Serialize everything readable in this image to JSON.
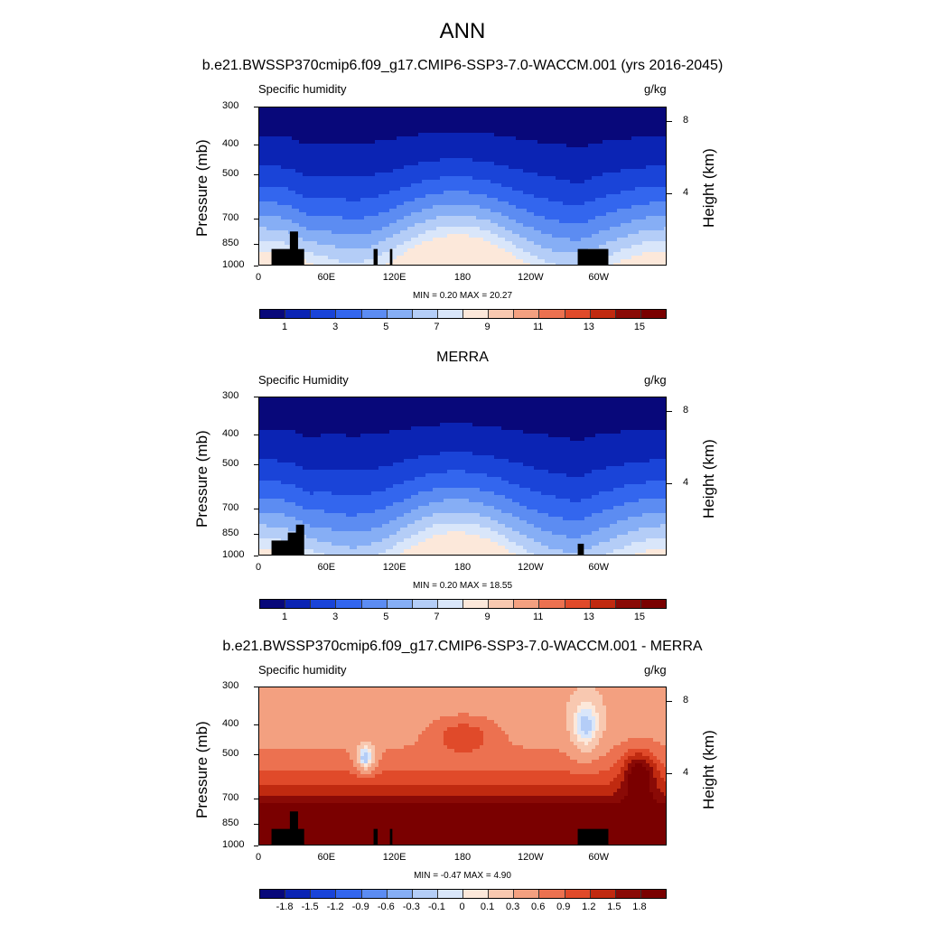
{
  "title": "ANN",
  "colors": {
    "levels15": [
      "#08087a",
      "#0b24b4",
      "#1a44d8",
      "#3366ee",
      "#5c8cf2",
      "#86aef5",
      "#b4cdf7",
      "#d9e6fa",
      "#fce8da",
      "#f8c8b0",
      "#f3a080",
      "#ec7150",
      "#e04a2a",
      "#c02a10",
      "#8a0a06",
      "#7a0000"
    ],
    "diff": [
      "#08087a",
      "#0b24b4",
      "#1a44d8",
      "#3366ee",
      "#5c8cf2",
      "#86aef5",
      "#b4cdf7",
      "#d9e6fa",
      "#fce8da",
      "#f8c8b0",
      "#f3a080",
      "#ec7150",
      "#e04a2a",
      "#c02a10",
      "#8a0a06",
      "#7a0000"
    ]
  },
  "panels": [
    {
      "header": "b.e21.BWSSP370cmip6.f09_g17.CMIP6-SSP3-7.0-WACCM.001 (yrs 2016-2045)",
      "left_label": "Specific humidity",
      "right_label": "g/kg",
      "y_title": "Pressure (mb)",
      "y2_title": "Height (km)",
      "minmax": "MIN =   0.20  MAX =  20.27",
      "cbar_labels": [
        "1",
        "3",
        "5",
        "7",
        "9",
        "11",
        "13",
        "15"
      ]
    },
    {
      "header": "MERRA",
      "left_label": "Specific Humidity",
      "right_label": "g/kg",
      "y_title": "Pressure (mb)",
      "y2_title": "Height (km)",
      "minmax": "MIN =   0.20  MAX =  18.55",
      "cbar_labels": [
        "1",
        "3",
        "5",
        "7",
        "9",
        "11",
        "13",
        "15"
      ]
    },
    {
      "header": "b.e21.BWSSP370cmip6.f09_g17.CMIP6-SSP3-7.0-WACCM.001 - MERRA",
      "left_label": "Specific humidity",
      "right_label": "g/kg",
      "y_title": "Pressure (mb)",
      "y2_title": "Height (km)",
      "minmax": "MIN =  -0.47  MAX =   4.90",
      "cbar_labels": [
        "-1.8",
        "-1.5",
        "-1.2",
        "-0.9",
        "-0.6",
        "-0.3",
        "-0.1",
        "0",
        "0.1",
        "0.3",
        "0.6",
        "0.9",
        "1.2",
        "1.5",
        "1.8"
      ]
    }
  ],
  "chart_data": [
    {
      "type": "heatmap",
      "title": "b.e21.BWSSP370cmip6.f09_g17.CMIP6-SSP3-7.0-WACCM.001 (yrs 2016-2045)",
      "subtitle": "Specific humidity",
      "units": "g/kg",
      "xlabel": "",
      "ylabel": "Pressure (mb)",
      "y2label": "Height (km)",
      "x_ticks": [
        "0",
        "60E",
        "120E",
        "180",
        "120W",
        "60W"
      ],
      "y_ticks": [
        "300",
        "400",
        "500",
        "700",
        "850",
        "1000"
      ],
      "y2_ticks": [
        "8",
        "4"
      ],
      "ylim": [
        1000,
        300
      ],
      "contour_levels": [
        1,
        3,
        5,
        7,
        9,
        11,
        13,
        15
      ],
      "min": 0.2,
      "max": 20.27
    },
    {
      "type": "heatmap",
      "title": "MERRA",
      "subtitle": "Specific Humidity",
      "units": "g/kg",
      "xlabel": "",
      "ylabel": "Pressure (mb)",
      "y2label": "Height (km)",
      "x_ticks": [
        "0",
        "60E",
        "120E",
        "180",
        "120W",
        "60W"
      ],
      "y_ticks": [
        "300",
        "400",
        "500",
        "700",
        "850",
        "1000"
      ],
      "y2_ticks": [
        "8",
        "4"
      ],
      "ylim": [
        1000,
        300
      ],
      "contour_levels": [
        1,
        3,
        5,
        7,
        9,
        11,
        13,
        15
      ],
      "min": 0.2,
      "max": 18.55
    },
    {
      "type": "heatmap",
      "title": "b.e21.BWSSP370cmip6.f09_g17.CMIP6-SSP3-7.0-WACCM.001 - MERRA",
      "subtitle": "Specific humidity",
      "units": "g/kg",
      "xlabel": "",
      "ylabel": "Pressure (mb)",
      "y2label": "Height (km)",
      "x_ticks": [
        "0",
        "60E",
        "120E",
        "180",
        "120W",
        "60W"
      ],
      "y_ticks": [
        "300",
        "400",
        "500",
        "700",
        "850",
        "1000"
      ],
      "y2_ticks": [
        "8",
        "4"
      ],
      "ylim": [
        1000,
        300
      ],
      "contour_levels": [
        -1.8,
        -1.5,
        -1.2,
        -0.9,
        -0.6,
        -0.3,
        -0.1,
        0,
        0.1,
        0.3,
        0.6,
        0.9,
        1.2,
        1.5,
        1.8
      ],
      "min": -0.47,
      "max": 4.9
    }
  ]
}
